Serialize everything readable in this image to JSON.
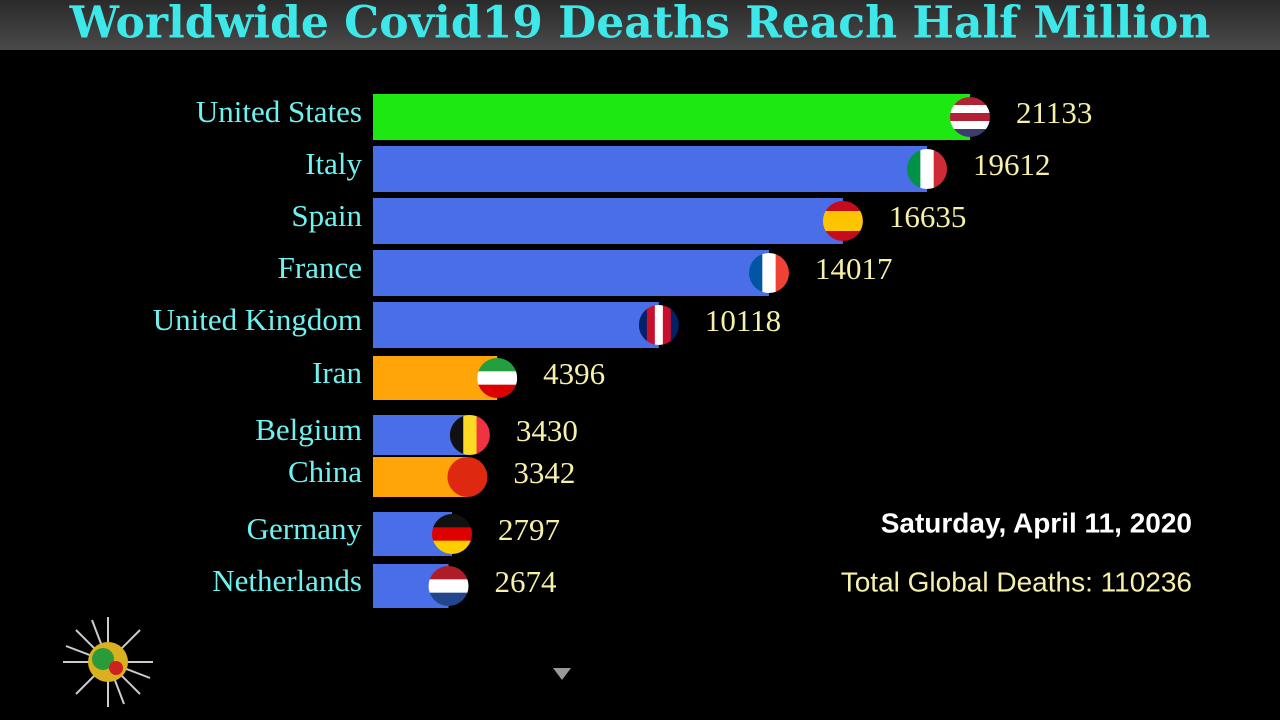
{
  "chart_data": {
    "type": "bar",
    "orientation": "horizontal",
    "title": "Worldwide Covid19 Deaths Reach Half Million",
    "categories": [
      "United States",
      "Italy",
      "Spain",
      "France",
      "United Kingdom",
      "Iran",
      "Belgium",
      "China",
      "Germany",
      "Netherlands"
    ],
    "values": [
      21133,
      19612,
      16635,
      14017,
      10118,
      4396,
      3430,
      3342,
      2797,
      2674
    ],
    "colors": [
      "#1ee812",
      "#4a6ee8",
      "#4a6ee8",
      "#4a6ee8",
      "#4a6ee8",
      "#ffa50a",
      "#4a6ee8",
      "#ffa50a",
      "#4a6ee8",
      "#4a6ee8"
    ],
    "date": "Saturday, April 11, 2020",
    "total": "Total Global Deaths: 110236"
  }
}
